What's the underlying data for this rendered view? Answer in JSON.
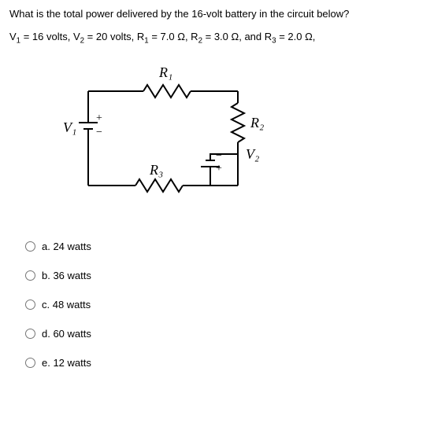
{
  "question": "What is the total power delivered by the 16-volt battery in the circuit below?",
  "params_html": "V<sub>1</sub> = 16 volts, V<sub>2</sub> = 20 volts, R<sub>1</sub> = 7.0 Ω, R<sub>2</sub> = 3.0 Ω, and R<sub>3</sub> = 2.0 Ω,",
  "circuit": {
    "labels": {
      "V1": "V₁",
      "V2": "V₂",
      "R1": "R₁",
      "R2": "R₂",
      "R3": "R₃"
    },
    "stroke": "#000000",
    "stroke_width": 2,
    "font_family": "Times New Roman, serif",
    "font_size": 18
  },
  "options": {
    "a": "a. 24 watts",
    "b": "b. 36 watts",
    "c": "c. 48 watts",
    "d": "d. 60 watts",
    "e": "e. 12 watts"
  }
}
